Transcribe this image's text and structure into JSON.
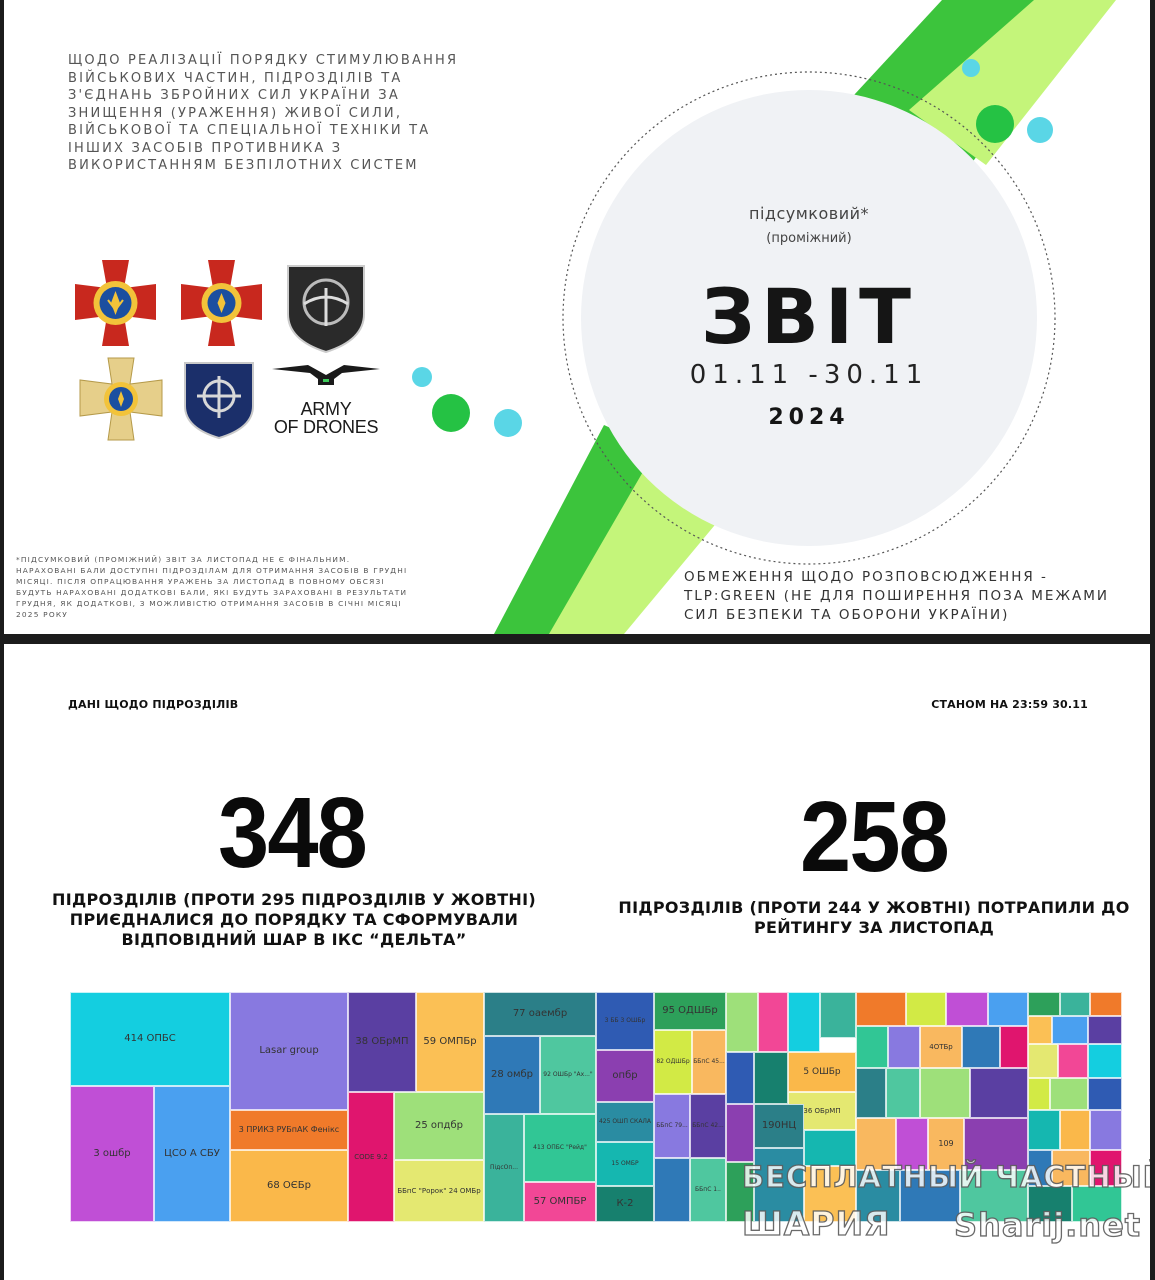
{
  "slide1": {
    "title_lines": [
      "ЩОДО РЕАЛІЗАЦІЇ ПОРЯДКУ СТИМУЛЮВАННЯ",
      "ВІЙСЬКОВИХ ЧАСТИН, ПІДРОЗДІЛІВ ТА",
      "З'ЄДНАНЬ ЗБРОЙНИХ СИЛ УКРАЇНИ ЗА",
      "ЗНИЩЕННЯ (УРАЖЕННЯ) ЖИВОЇ СИЛИ,",
      "ВІЙСЬКОВОЇ ТА СПЕЦІАЛЬНОЇ ТЕХНІКИ ТА",
      "ІНШИХ ЗАСОБІВ ПРОТИВНИКА З",
      "ВИКОРИСТАННЯМ БЕЗПІЛОТНИХ СИСТЕМ"
    ],
    "army_of_drones_lines": [
      "ARMY",
      "OF DRONES"
    ],
    "report_subtitle": "підсумковий*",
    "report_subtitle2": "(проміжний)",
    "report_title": "ЗВІТ",
    "report_dates": "01.11 -30.11",
    "report_year": "2024",
    "footnote_lines": [
      "*ПІДСУМКОВИЙ (ПРОМІЖНИЙ) ЗВІТ ЗА ЛИСТОПАД НЕ Є ФІНАЛЬНИМ.",
      "НАРАХОВАНІ БАЛИ ДОСТУПНІ ПІДРОЗДІЛАМ ДЛЯ ОТРИМАННЯ ЗАСОБІВ В ГРУДНІ",
      "МІСЯЦІ. ПІСЛЯ ОПРАЦЮВАННЯ УРАЖЕНЬ ЗА ЛИСТОПАД В ПОВНОМУ ОБСЯЗІ",
      "БУДУТЬ НАРАХОВАНІ ДОДАТКОВІ БАЛИ, ЯКІ БУДУТЬ ЗАРАХОВАНІ В РЕЗУЛЬТАТИ",
      "ГРУДНЯ, ЯК ДОДАТКОВІ, З МОЖЛИВІСТЮ ОТРИМАННЯ ЗАСОБІВ В СІЧНІ МІСЯЦІ",
      "2025 РОКУ"
    ],
    "restriction_lines": [
      "ОБМЕЖЕННЯ ЩОДО РОЗПОВСЮДЖЕННЯ -",
      "TLP:GREEN (НЕ ДЛЯ ПОШИРЕННЯ ПОЗА МЕЖАМИ",
      "СИЛ БЕЗПЕКИ ТА ОБОРОНИ УКРАЇНИ)"
    ],
    "colors": {
      "green_dark": "#3cc43c",
      "green_light": "#c4f57a",
      "cyan": "#5ad6e6",
      "circle_bg": "#f0f2f5"
    }
  },
  "slide2": {
    "header_left": "ДАНІ ЩОДО ПІДРОЗДІЛІВ",
    "header_right": "СТАНОМ НА 23:59 30.11",
    "stat_left": {
      "value": "348",
      "caption_lines": [
        "ПІДРОЗДІЛІВ (ПРОТИ 295 ПІДРОЗДІЛІВ У ЖОВТНІ)",
        "ПРИЄДНАЛИСЯ ДО ПОРЯДКУ ТА СФОРМУВАЛИ",
        "ВІДПОВІДНИЙ ШАР В ІКС “ДЕЛЬТА”"
      ]
    },
    "stat_right": {
      "value": "258",
      "caption_lines": [
        "ПІДРОЗДІЛІВ (ПРОТИ 244 У ЖОВТНІ) ПОТРАПИЛИ ДО",
        "РЕЙТИНГУ ЗА ЛИСТОПАД"
      ]
    },
    "treemap_labels": [
      "414 ОПБС",
      "3 ошбр",
      "ЦСО А СБУ",
      "Lasar group",
      "3 ПРИКЗ РУБпАК Фенікс",
      "68 ОЄБр",
      "38 ОБрМП",
      "CODE 9.2",
      "59 ОМПБр",
      "25 опдбр",
      "ББпС \"Ророк\" 24 ОМБр",
      "77 оаембр",
      "28 омбр",
      "92 ОШБр \"Ах...\"",
      "ПідсОп...",
      "413 ОПБС \"Рейд\"",
      "57 ОМПБР",
      "3 ББ 3 ОШБр",
      "опбр",
      "425 ОШП СКАЛА",
      "15 ОМБР",
      "К-2",
      "95 ОДШБр",
      "82 ОДШБр",
      "ББпС 45...",
      "ББпС 79...",
      "ББпС 42...",
      "ББпС 1..",
      "5 ОШБр",
      "190НЦ",
      "36 ОБрМП",
      "4ОТБр",
      "109"
    ],
    "treemap_colors": [
      "#14cee0",
      "#c04fd6",
      "#4aa0f0",
      "#8879e0",
      "#f07a2a",
      "#fab84a",
      "#5a3fa2",
      "#e0156e",
      "#fbc055",
      "#9ee07a",
      "#e4e871",
      "#2b7f88",
      "#2f79b7",
      "#4fc79f",
      "#3ab39b",
      "#31c695",
      "#f24796",
      "#2f5bb3",
      "#8b3fb0",
      "#2a8ca2",
      "#15b7b0",
      "#17806e",
      "#2da05a",
      "#d2ea45",
      "#f9b85f"
    ]
  },
  "watermark": {
    "line1": "БЕСПЛАТНЫЙ ЧАСТНЫЙ",
    "line2": "ШАРИЯ",
    "line3": "Sharij.net"
  }
}
